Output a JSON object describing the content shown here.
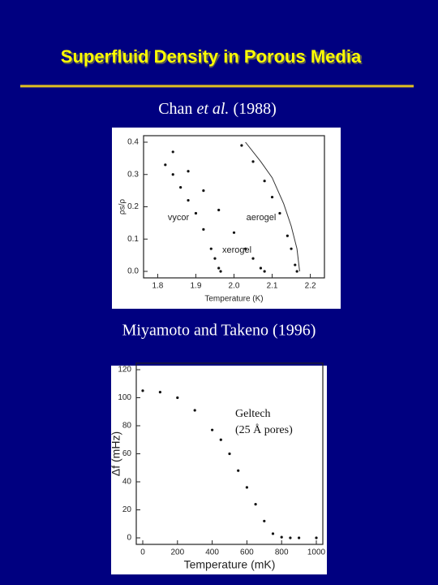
{
  "slide": {
    "title": "Superfluid Density in Porous Media",
    "citation_1": {
      "author": "Chan",
      "italic": "et al.",
      "year": "(1988)"
    },
    "citation_2": "Miyamoto and Takeno (1996)"
  },
  "chart_data": [
    {
      "type": "scatter",
      "x_label": "Temperature (K)",
      "y_label": "ρs/ρ",
      "xlim": [
        1.78,
        2.22
      ],
      "ylim": [
        0,
        0.4
      ],
      "xticks": [
        1.8,
        1.9,
        {
          "value": 2,
          "label": "2.0"
        },
        2.1,
        2.2
      ],
      "yticks": [
        {
          "value": 0,
          "label": "0.0"
        },
        0.1,
        0.2,
        0.3,
        0.4
      ],
      "series": [
        {
          "name": "vycor",
          "color": "#111111",
          "style": "dots",
          "x": [
            1.82,
            1.84,
            1.86,
            1.88,
            1.9,
            1.92,
            1.94,
            1.95,
            1.96,
            1.965
          ],
          "y": [
            0.33,
            0.3,
            0.26,
            0.22,
            0.18,
            0.13,
            0.07,
            0.04,
            0.01,
            0
          ]
        },
        {
          "name": "xerogel",
          "color": "#111111",
          "style": "dots",
          "x": [
            1.84,
            1.88,
            1.92,
            1.96,
            2.0,
            2.03,
            2.05,
            2.07,
            2.08
          ],
          "y": [
            0.37,
            0.31,
            0.25,
            0.19,
            0.12,
            0.07,
            0.04,
            0.01,
            0
          ]
        },
        {
          "name": "aerogel",
          "color": "#111111",
          "style": "dots",
          "x": [
            2.02,
            2.05,
            2.08,
            2.1,
            2.12,
            2.14,
            2.15,
            2.16,
            2.165
          ],
          "y": [
            0.39,
            0.34,
            0.28,
            0.23,
            0.18,
            0.11,
            0.07,
            0.02,
            0
          ]
        },
        {
          "color": "#333333",
          "style": "line",
          "x": [
            2.03,
            2.07,
            2.1,
            2.13,
            2.15,
            2.165,
            2.172
          ],
          "y": [
            0.4,
            0.34,
            0.29,
            0.21,
            0.14,
            0.07,
            0
          ]
        }
      ]
    },
    {
      "type": "scatter",
      "x_label": "Temperature (mK)",
      "y_label": "Δf (mHz)",
      "xlim": [
        0,
        1000
      ],
      "ylim": [
        0,
        120
      ],
      "xticks": [
        0,
        200,
        400,
        600,
        800,
        1000
      ],
      "yticks": [
        0,
        20,
        40,
        60,
        80,
        100,
        120
      ],
      "annotations": [
        "Geltech",
        "(25 Å pores)"
      ],
      "series": [
        {
          "color": "#111111",
          "style": "dots",
          "x": [
            0,
            100,
            200,
            300,
            400,
            450,
            500,
            550,
            600,
            650,
            700,
            750,
            800,
            850,
            900,
            1000
          ],
          "y": [
            105,
            104,
            100,
            91,
            77,
            70,
            60,
            48,
            36,
            24,
            12,
            3,
            0.5,
            0,
            0,
            0
          ]
        }
      ]
    }
  ]
}
